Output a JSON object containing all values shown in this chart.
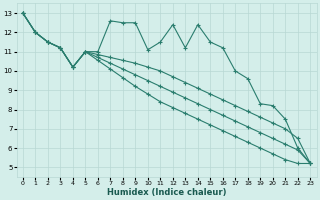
{
  "bg_color": "#d4eeea",
  "grid_color": "#b8d8d4",
  "line_color": "#2a7d6e",
  "xlabel": "Humidex (Indice chaleur)",
  "xlim": [
    -0.5,
    23.5
  ],
  "ylim": [
    4.5,
    13.5
  ],
  "xticks": [
    0,
    1,
    2,
    3,
    4,
    5,
    6,
    7,
    8,
    9,
    10,
    11,
    12,
    13,
    14,
    15,
    16,
    17,
    18,
    19,
    20,
    21,
    22,
    23
  ],
  "yticks": [
    5,
    6,
    7,
    8,
    9,
    10,
    11,
    12,
    13
  ],
  "series": [
    [
      13.0,
      12.0,
      11.5,
      11.2,
      10.2,
      11.0,
      11.0,
      12.6,
      12.5,
      12.5,
      11.1,
      11.5,
      12.4,
      11.2,
      12.4,
      11.5,
      11.2,
      10.0,
      9.6,
      8.3,
      8.2,
      7.5,
      6.0,
      5.2
    ],
    [
      13.0,
      12.0,
      11.5,
      11.2,
      10.2,
      11.0,
      10.85,
      10.7,
      10.55,
      10.4,
      10.2,
      10.0,
      9.7,
      9.4,
      9.1,
      8.8,
      8.5,
      8.2,
      7.9,
      7.6,
      7.3,
      7.0,
      6.5,
      5.2
    ],
    [
      13.0,
      12.0,
      11.5,
      11.2,
      10.2,
      11.0,
      10.7,
      10.4,
      10.1,
      9.8,
      9.5,
      9.2,
      8.9,
      8.6,
      8.3,
      8.0,
      7.7,
      7.4,
      7.1,
      6.8,
      6.5,
      6.2,
      5.9,
      5.2
    ],
    [
      13.0,
      12.0,
      11.5,
      11.2,
      10.2,
      11.0,
      10.55,
      10.1,
      9.65,
      9.2,
      8.8,
      8.4,
      8.1,
      7.8,
      7.5,
      7.2,
      6.9,
      6.6,
      6.3,
      6.0,
      5.7,
      5.4,
      5.2,
      5.2
    ]
  ],
  "marker": "+",
  "markersize": 3,
  "linewidth": 0.8
}
